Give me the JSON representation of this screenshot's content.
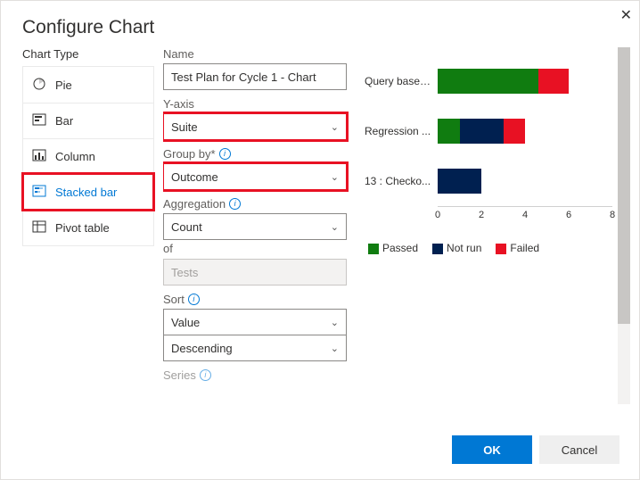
{
  "dialog": {
    "title": "Configure Chart",
    "ok": "OK",
    "cancel": "Cancel"
  },
  "chartTypes": {
    "heading": "Chart Type",
    "items": [
      {
        "label": "Pie",
        "selected": false
      },
      {
        "label": "Bar",
        "selected": false
      },
      {
        "label": "Column",
        "selected": false
      },
      {
        "label": "Stacked bar",
        "selected": true,
        "highlight": true
      },
      {
        "label": "Pivot table",
        "selected": false
      }
    ]
  },
  "form": {
    "name": {
      "label": "Name",
      "value": "Test Plan for Cycle 1 - Chart"
    },
    "yaxis": {
      "label": "Y-axis",
      "value": "Suite",
      "highlight": true
    },
    "groupby": {
      "label": "Group by*",
      "value": "Outcome",
      "info": true,
      "highlight": true
    },
    "aggregation": {
      "label": "Aggregation",
      "value": "Count",
      "info": true
    },
    "of": {
      "label": "of",
      "value": "Tests",
      "disabled": true
    },
    "sort": {
      "label": "Sort",
      "value": "Value",
      "value2": "Descending",
      "info": true
    },
    "series": {
      "label": "Series",
      "info": true
    }
  },
  "chart": {
    "x_max": 8,
    "ticks": [
      0,
      2,
      4,
      6,
      8
    ],
    "colors": {
      "passed": "#107c10",
      "notrun": "#002050",
      "failed": "#e81123"
    },
    "rows": [
      {
        "label": "Query based...",
        "segments": [
          {
            "k": "passed",
            "v": 4.6
          },
          {
            "k": "failed",
            "v": 1.4
          }
        ]
      },
      {
        "label": "Regression ...",
        "segments": [
          {
            "k": "passed",
            "v": 1.0
          },
          {
            "k": "notrun",
            "v": 2.0
          },
          {
            "k": "failed",
            "v": 1.0
          }
        ]
      },
      {
        "label": "13 : Checko...",
        "segments": [
          {
            "k": "notrun",
            "v": 2.0
          }
        ]
      }
    ],
    "legend": [
      {
        "label": "Passed",
        "color": "#107c10"
      },
      {
        "label": "Not run",
        "color": "#002050"
      },
      {
        "label": "Failed",
        "color": "#e81123"
      }
    ]
  }
}
